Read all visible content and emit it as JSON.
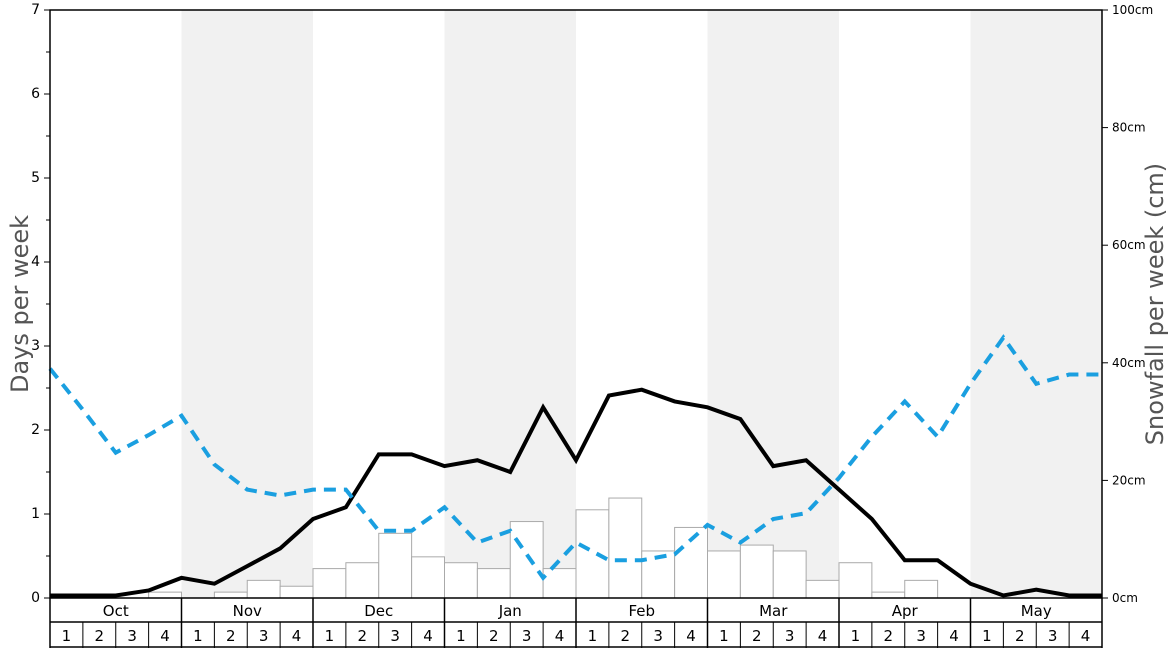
{
  "chart_data": {
    "type": "bar+line",
    "ylabel_left": "Days per week",
    "ylabel_right": "Snowfall per week (cm)",
    "ylim_left": [
      0,
      7
    ],
    "ylim_right": [
      0,
      100
    ],
    "left_ticks": [
      "0",
      "1",
      "2",
      "3",
      "4",
      "5",
      "6",
      "7"
    ],
    "right_ticks": [
      "0cm",
      "20cm",
      "40cm",
      "60cm",
      "80cm",
      "100cm"
    ],
    "months": [
      "Oct",
      "Nov",
      "Dec",
      "Jan",
      "Feb",
      "Mar",
      "Apr",
      "May"
    ],
    "weeks": [
      "1",
      "2",
      "3",
      "4"
    ],
    "shaded_months": [
      "Nov",
      "Jan",
      "Mar",
      "May"
    ],
    "snowfall_cm": [
      0,
      0,
      0,
      1,
      0,
      1,
      3,
      2,
      5,
      6,
      11,
      7,
      6,
      5,
      13,
      5,
      15,
      17,
      8,
      12,
      8,
      9,
      8,
      3,
      6,
      1,
      3,
      0,
      0,
      0,
      0,
      0
    ],
    "series": [
      {
        "role": "solid",
        "color": "#000000",
        "values": [
          0.03,
          0.03,
          0.03,
          0.09,
          0.24,
          0.17,
          0.38,
          0.59,
          0.94,
          1.08,
          1.71,
          1.71,
          1.57,
          1.64,
          1.5,
          2.27,
          1.64,
          2.41,
          2.48,
          2.34,
          2.27,
          2.13,
          1.57,
          1.64,
          1.29,
          0.94,
          0.45,
          0.45,
          0.17,
          0.03,
          0.1,
          0.03,
          0.03
        ]
      },
      {
        "role": "dashed",
        "color": "#1a9fe0",
        "values": [
          2.73,
          2.24,
          1.73,
          1.94,
          2.17,
          1.59,
          1.29,
          1.22,
          1.29,
          1.29,
          0.8,
          0.8,
          1.08,
          0.66,
          0.8,
          0.24,
          0.66,
          0.45,
          0.45,
          0.52,
          0.87,
          0.66,
          0.94,
          1.01,
          1.43,
          1.92,
          2.34,
          1.92,
          2.55,
          3.1,
          2.55,
          2.66,
          2.66
        ]
      }
    ],
    "grid": false,
    "legend": "none"
  }
}
